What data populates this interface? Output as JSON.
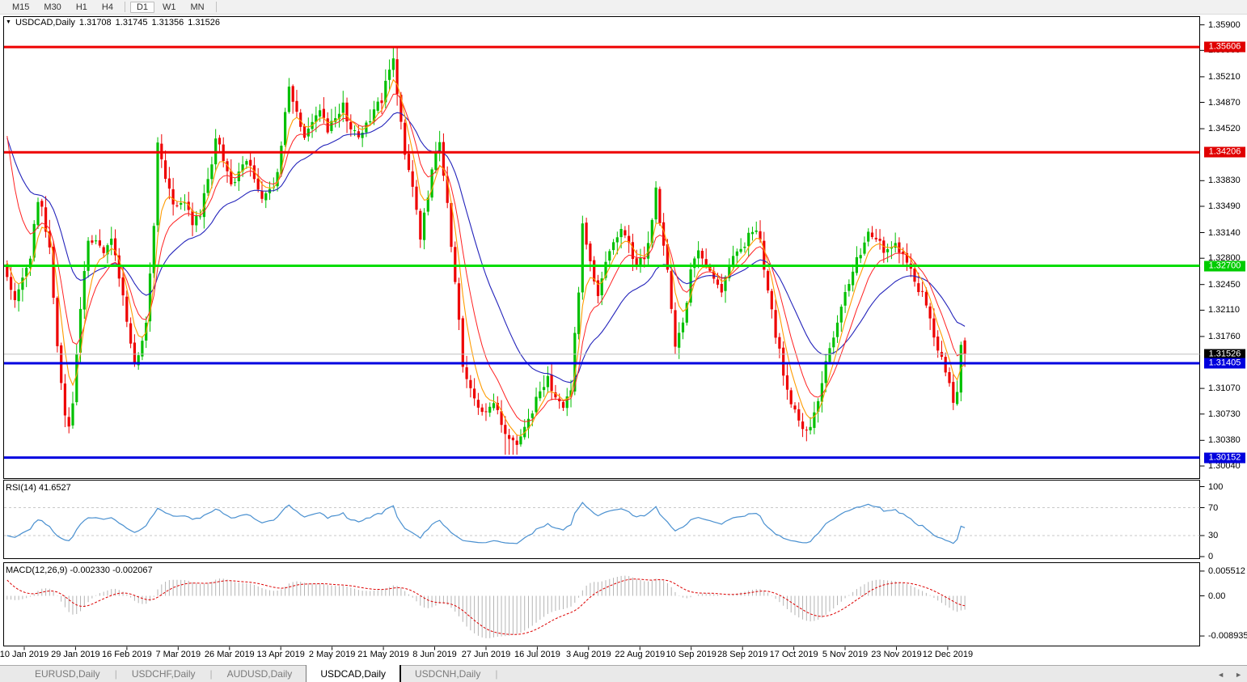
{
  "toolbar": {
    "timeframes": [
      {
        "label": "M15",
        "active": false,
        "sep_after": false
      },
      {
        "label": "M30",
        "active": false,
        "sep_after": false
      },
      {
        "label": "H1",
        "active": false,
        "sep_after": false
      },
      {
        "label": "H4",
        "active": false,
        "sep_after": true
      },
      {
        "label": "D1",
        "active": true,
        "sep_after": false
      },
      {
        "label": "W1",
        "active": false,
        "sep_after": false
      },
      {
        "label": "MN",
        "active": false,
        "sep_after": true
      }
    ]
  },
  "chart": {
    "symbol_label": "USDCAD,Daily",
    "ohlc": {
      "open": "1.31708",
      "high": "1.31745",
      "low": "1.31356",
      "close": "1.31526"
    },
    "price_axis_labels": [
      "1.35900",
      "1.35560",
      "1.35210",
      "1.34870",
      "1.34520",
      "1.33830",
      "1.33490",
      "1.33140",
      "1.32800",
      "1.32450",
      "1.32110",
      "1.31760",
      "1.31070",
      "1.30730",
      "1.30380",
      "1.30040"
    ],
    "price_badges": [
      {
        "label": "1.35606",
        "value": 1.35606,
        "bg": "#e00000"
      },
      {
        "label": "1.34206",
        "value": 1.34206,
        "bg": "#e00000"
      },
      {
        "label": "1.32700",
        "value": 1.327,
        "bg": "#00cc00"
      },
      {
        "label": "1.31526",
        "value": 1.31526,
        "bg": "#000000"
      },
      {
        "label": "1.31405",
        "value": 1.31405,
        "bg": "#0000dd"
      },
      {
        "label": "1.30152",
        "value": 1.30152,
        "bg": "#0000dd"
      }
    ],
    "date_axis": [
      "10 Jan 2019",
      "29 Jan 2019",
      "16 Feb 2019",
      "7 Mar 2019",
      "26 Mar 2019",
      "13 Apr 2019",
      "2 May 2019",
      "21 May 2019",
      "8 Jun 2019",
      "27 Jun 2019",
      "16 Jul 2019",
      "3 Aug 2019",
      "22 Aug 2019",
      "10 Sep 2019",
      "28 Sep 2019",
      "17 Oct 2019",
      "5 Nov 2019",
      "23 Nov 2019",
      "12 Dec 2019"
    ]
  },
  "rsi": {
    "label": "RSI(14)",
    "value": "41.6527",
    "axis": [
      "100",
      "70",
      "30",
      "0"
    ],
    "levels": [
      70,
      30
    ]
  },
  "macd": {
    "label": "MACD(12,26,9)",
    "values": "-0.002330 -0.002067",
    "axis": [
      "0.005512",
      "0.00",
      "-0.008935"
    ]
  },
  "tabs": [
    {
      "label": "EURUSD,Daily",
      "active": false
    },
    {
      "label": "USDCHF,Daily",
      "active": false
    },
    {
      "label": "AUDUSD,Daily",
      "active": false
    },
    {
      "label": "USDCAD,Daily",
      "active": true
    },
    {
      "label": "USDCNH,Daily",
      "active": false
    }
  ],
  "tab_scroll": {
    "left": "◄",
    "right": "►"
  },
  "colors": {
    "bull": "#00c000",
    "bear": "#ee0000",
    "ma_fast": "#ff9c00",
    "ma_mid": "#ff2222",
    "ma_slow": "#2424bb",
    "res_line": "#ee0000",
    "sup_green": "#00dd00",
    "sup_blue": "#0000e0",
    "cur_line": "#c0c0c0",
    "rsi_line": "#4a90d0",
    "rsi_level": "#c8c8c8",
    "macd_hist": "#b4b4b4",
    "macd_signal": "#dd0000",
    "panel_border": "#000000"
  },
  "chart_data": {
    "type": "candlestick",
    "symbol": "USDCAD",
    "timeframe": "Daily",
    "bars_total": 249,
    "current_bar": {
      "open": 1.31708,
      "high": 1.31745,
      "low": 1.31356,
      "close": 1.31526
    },
    "price_range": [
      1.3004,
      1.359
    ],
    "horizontal_levels": [
      1.35606,
      1.34206,
      1.327,
      1.31405,
      1.30152
    ],
    "current_price": 1.31526,
    "close_path": [
      [
        0,
        1.3255
      ],
      [
        2,
        1.323
      ],
      [
        4,
        1.326
      ],
      [
        6,
        1.3285
      ],
      [
        8,
        1.336
      ],
      [
        9,
        1.3345
      ],
      [
        11,
        1.329
      ],
      [
        13,
        1.316
      ],
      [
        15,
        1.3072
      ],
      [
        16,
        1.3058
      ],
      [
        17,
        1.309
      ],
      [
        19,
        1.3215
      ],
      [
        21,
        1.33
      ],
      [
        23,
        1.331
      ],
      [
        25,
        1.329
      ],
      [
        27,
        1.33
      ],
      [
        29,
        1.3255
      ],
      [
        31,
        1.32
      ],
      [
        33,
        1.3135
      ],
      [
        34,
        1.315
      ],
      [
        36,
        1.32
      ],
      [
        38,
        1.332
      ],
      [
        39,
        1.343
      ],
      [
        40,
        1.341
      ],
      [
        42,
        1.337
      ],
      [
        44,
        1.3345
      ],
      [
        46,
        1.336
      ],
      [
        48,
        1.333
      ],
      [
        50,
        1.334
      ],
      [
        52,
        1.338
      ],
      [
        54,
        1.344
      ],
      [
        56,
        1.341
      ],
      [
        58,
        1.3375
      ],
      [
        60,
        1.339
      ],
      [
        62,
        1.3415
      ],
      [
        64,
        1.338
      ],
      [
        66,
        1.3355
      ],
      [
        68,
        1.337
      ],
      [
        70,
        1.339
      ],
      [
        72,
        1.348
      ],
      [
        73,
        1.351
      ],
      [
        75,
        1.347
      ],
      [
        77,
        1.344
      ],
      [
        79,
        1.346
      ],
      [
        81,
        1.3475
      ],
      [
        83,
        1.345
      ],
      [
        85,
        1.3465
      ],
      [
        87,
        1.3485
      ],
      [
        89,
        1.345
      ],
      [
        91,
        1.344
      ],
      [
        93,
        1.346
      ],
      [
        95,
        1.3475
      ],
      [
        97,
        1.349
      ],
      [
        99,
        1.353
      ],
      [
        100,
        1.3545
      ],
      [
        101,
        1.35
      ],
      [
        103,
        1.342
      ],
      [
        105,
        1.337
      ],
      [
        107,
        1.331
      ],
      [
        109,
        1.3365
      ],
      [
        111,
        1.342
      ],
      [
        112,
        1.3435
      ],
      [
        114,
        1.335
      ],
      [
        116,
        1.325
      ],
      [
        118,
        1.314
      ],
      [
        120,
        1.3105
      ],
      [
        122,
        1.3085
      ],
      [
        124,
        1.307
      ],
      [
        126,
        1.309
      ],
      [
        128,
        1.306
      ],
      [
        130,
        1.3045
      ],
      [
        132,
        1.3035
      ],
      [
        134,
        1.3055
      ],
      [
        136,
        1.308
      ],
      [
        138,
        1.3105
      ],
      [
        140,
        1.3125
      ],
      [
        142,
        1.3095
      ],
      [
        144,
        1.3075
      ],
      [
        146,
        1.311
      ],
      [
        148,
        1.324
      ],
      [
        149,
        1.332
      ],
      [
        151,
        1.328
      ],
      [
        153,
        1.323
      ],
      [
        155,
        1.327
      ],
      [
        157,
        1.33
      ],
      [
        159,
        1.332
      ],
      [
        161,
        1.33
      ],
      [
        163,
        1.327
      ],
      [
        165,
        1.328
      ],
      [
        167,
        1.333
      ],
      [
        168,
        1.337
      ],
      [
        169,
        1.333
      ],
      [
        171,
        1.327
      ],
      [
        173,
        1.316
      ],
      [
        175,
        1.319
      ],
      [
        177,
        1.326
      ],
      [
        179,
        1.329
      ],
      [
        181,
        1.327
      ],
      [
        183,
        1.325
      ],
      [
        185,
        1.323
      ],
      [
        187,
        1.327
      ],
      [
        189,
        1.3285
      ],
      [
        191,
        1.33
      ],
      [
        193,
        1.332
      ],
      [
        195,
        1.3305
      ],
      [
        197,
        1.3235
      ],
      [
        199,
        1.318
      ],
      [
        201,
        1.313
      ],
      [
        203,
        1.309
      ],
      [
        205,
        1.3065
      ],
      [
        207,
        1.305
      ],
      [
        209,
        1.307
      ],
      [
        211,
        1.312
      ],
      [
        213,
        1.316
      ],
      [
        215,
        1.319
      ],
      [
        217,
        1.323
      ],
      [
        219,
        1.326
      ],
      [
        221,
        1.329
      ],
      [
        223,
        1.331
      ],
      [
        225,
        1.3305
      ],
      [
        227,
        1.329
      ],
      [
        229,
        1.33
      ],
      [
        231,
        1.329
      ],
      [
        233,
        1.327
      ],
      [
        235,
        1.325
      ],
      [
        237,
        1.323
      ],
      [
        239,
        1.32
      ],
      [
        241,
        1.316
      ],
      [
        243,
        1.313
      ],
      [
        245,
        1.309
      ],
      [
        246,
        1.3105
      ],
      [
        247,
        1.3165
      ],
      [
        248,
        1.31526
      ]
    ],
    "ma_left_edge": {
      "fast": 1.3284,
      "mid": 1.3484,
      "slow": 1.3455
    },
    "rsi_left_edge": 30,
    "macd_left_edge": {
      "main": -0.001,
      "signal": 0.0046
    },
    "indicators": {
      "rsi": {
        "period": 14,
        "last": 41.6527
      },
      "macd": {
        "fast": 12,
        "slow": 26,
        "signal": 9,
        "last_main": -0.00233,
        "last_signal": -0.002067
      }
    },
    "x_axis_dates": [
      "10 Jan 2019",
      "29 Jan 2019",
      "16 Feb 2019",
      "7 Mar 2019",
      "26 Mar 2019",
      "13 Apr 2019",
      "2 May 2019",
      "21 May 2019",
      "8 Jun 2019",
      "27 Jun 2019",
      "16 Jul 2019",
      "3 Aug 2019",
      "22 Aug 2019",
      "10 Sep 2019",
      "28 Sep 2019",
      "17 Oct 2019",
      "5 Nov 2019",
      "23 Nov 2019",
      "12 Dec 2019"
    ]
  }
}
